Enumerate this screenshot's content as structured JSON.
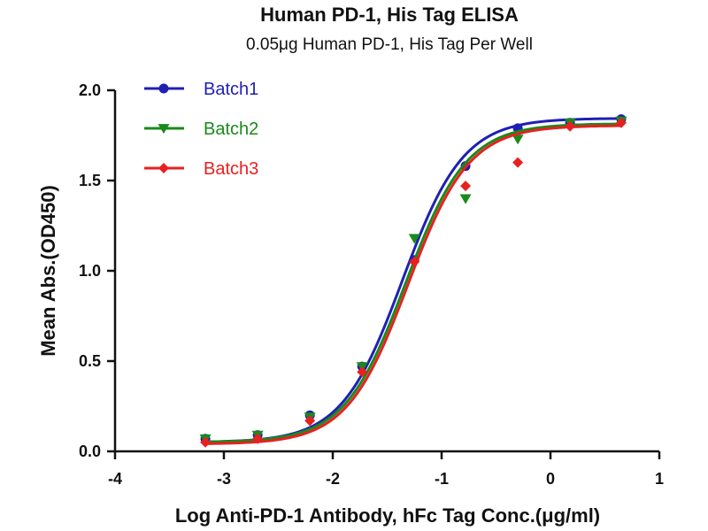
{
  "chart_data": {
    "type": "scatter",
    "title": "Human PD-1, His Tag ELISA",
    "subtitle": "0.05μg Human PD-1, His Tag  Per Well",
    "xlabel": "Log Anti-PD-1 Antibody, hFc Tag Conc.(μg/ml)",
    "ylabel": "Mean Abs.(OD450)",
    "xlim": [
      -4,
      1
    ],
    "ylim": [
      0,
      2.0
    ],
    "x_ticks": [
      -4,
      -3,
      -2,
      -1,
      0,
      1
    ],
    "x_tick_labels": [
      "-4",
      "-3",
      "-2",
      "-1",
      "0",
      "1"
    ],
    "y_ticks": [
      0,
      0.5,
      1.0,
      1.5,
      2.0
    ],
    "y_tick_labels": [
      "0.0",
      "0.5",
      "1.0",
      "1.5",
      "2.0"
    ],
    "legend_position": "top-left",
    "curve_fit": "four-parameter logistic",
    "series": [
      {
        "name": "Batch1",
        "color": "#1f1fb4",
        "marker": "circle",
        "x": [
          -3.17,
          -2.69,
          -2.21,
          -1.73,
          -1.25,
          -0.78,
          -0.3,
          0.18,
          0.65
        ],
        "y": [
          0.07,
          0.09,
          0.2,
          0.47,
          1.06,
          1.58,
          1.79,
          1.82,
          1.84
        ],
        "fit": {
          "bottom": 0.05,
          "top": 1.845,
          "logEC50": -1.36,
          "hill": 1.55
        }
      },
      {
        "name": "Batch2",
        "color": "#1a8a1a",
        "marker": "triangle-down",
        "x": [
          -3.17,
          -2.69,
          -2.21,
          -1.73,
          -1.25,
          -0.78,
          -0.3,
          0.18,
          0.65
        ],
        "y": [
          0.07,
          0.09,
          0.19,
          0.47,
          1.18,
          1.4,
          1.73,
          1.82,
          1.83
        ],
        "fit": {
          "bottom": 0.05,
          "top": 1.815,
          "logEC50": -1.33,
          "hill": 1.55
        }
      },
      {
        "name": "Batch3",
        "color": "#e82020",
        "marker": "diamond",
        "x": [
          -3.17,
          -2.69,
          -2.21,
          -1.73,
          -1.25,
          -0.78,
          -0.3,
          0.18,
          0.65
        ],
        "y": [
          0.05,
          0.07,
          0.17,
          0.44,
          1.05,
          1.47,
          1.6,
          1.8,
          1.82
        ],
        "fit": {
          "bottom": 0.04,
          "top": 1.805,
          "logEC50": -1.31,
          "hill": 1.55
        }
      }
    ]
  }
}
